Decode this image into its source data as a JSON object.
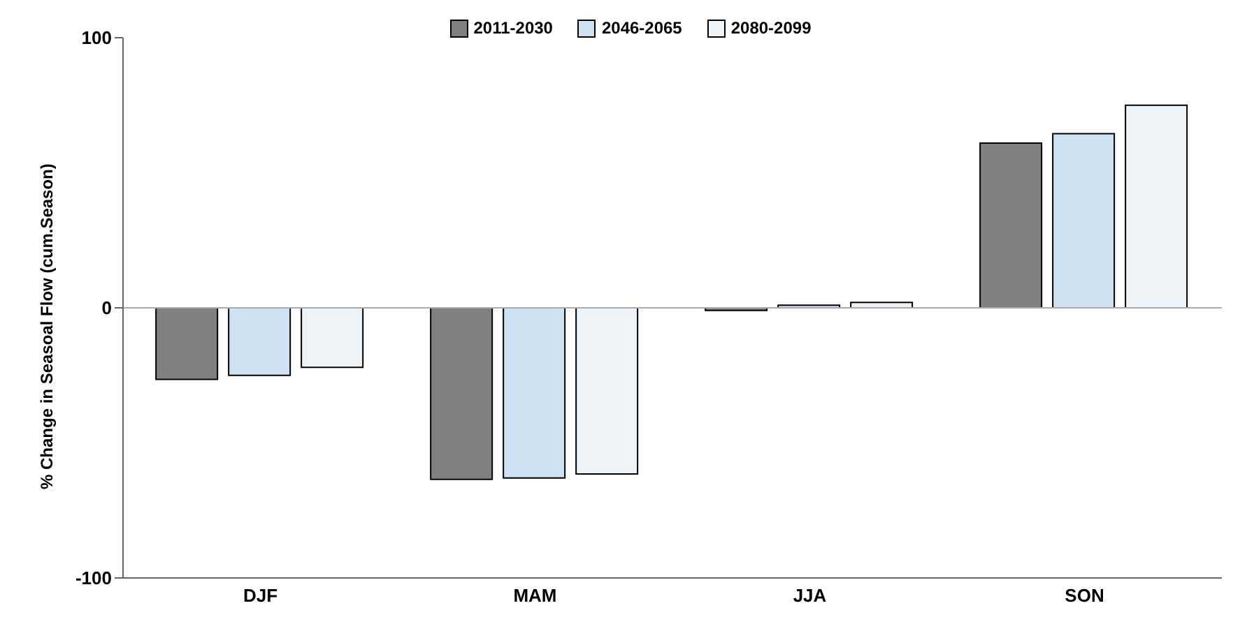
{
  "chart_data": {
    "type": "bar",
    "ylabel": "% Change in Seasoal Flow (cum.Season)",
    "categories": [
      "DJF",
      "MAM",
      "JJA",
      "SON"
    ],
    "series": [
      {
        "name": "2011-2030",
        "color": "#808080",
        "values": [
          -26.5,
          -63.5,
          -1,
          61
        ]
      },
      {
        "name": "2046-2065",
        "color": "#cfe2f3",
        "values": [
          -25,
          -63,
          1,
          64.5
        ]
      },
      {
        "name": "2080-2099",
        "color": "#eef3f8",
        "values": [
          -22,
          -61.5,
          2,
          75
        ]
      }
    ],
    "ylim": [
      -100,
      100
    ],
    "yticks": [
      -100,
      0,
      100
    ],
    "grid": false,
    "legend": "top",
    "ref_lines": [
      {
        "axis": "y",
        "value": 0
      }
    ]
  }
}
